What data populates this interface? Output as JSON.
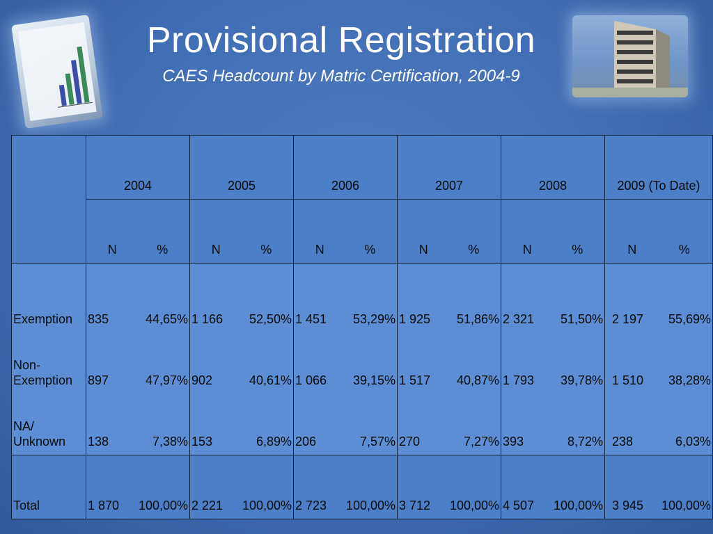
{
  "title": "Provisional Registration",
  "subtitle": "CAES  Headcount by Matric Certification, 2004-9",
  "images": {
    "left": "chart-monitor-image",
    "right": "building-image"
  },
  "table": {
    "years": [
      "2004",
      "2005",
      "2006",
      "2007",
      "2008",
      "2009 (To Date)"
    ],
    "sub_n": "N",
    "sub_pct": "%",
    "rows": [
      {
        "label": "Exemption",
        "n": [
          "835",
          "1 166",
          "1 451",
          "1 925",
          "2 321",
          "2 197"
        ],
        "pct": [
          "44,65%",
          "52,50%",
          "53,29%",
          "51,86%",
          "51,50%",
          "55,69%"
        ]
      },
      {
        "label": "Non-Exemption",
        "n": [
          "897",
          "902",
          "1 066",
          "1 517",
          "1 793",
          "1 510"
        ],
        "pct": [
          "47,97%",
          "40,61%",
          "39,15%",
          "40,87%",
          "39,78%",
          "38,28%"
        ]
      },
      {
        "label": "NA/ Unknown",
        "n": [
          "138",
          "153",
          "206",
          "270",
          "393",
          "238"
        ],
        "pct": [
          "7,38%",
          "6,89%",
          "7,57%",
          "7,27%",
          "8,72%",
          "6,03%"
        ]
      }
    ],
    "total": {
      "label": "Total",
      "n": [
        "1 870",
        "2 221",
        "2 723",
        "3 712",
        "4 507",
        "3 945"
      ],
      "pct": [
        "100,00%",
        "100,00%",
        "100,00%",
        "100,00%",
        "100,00%",
        "100,00%"
      ]
    }
  }
}
